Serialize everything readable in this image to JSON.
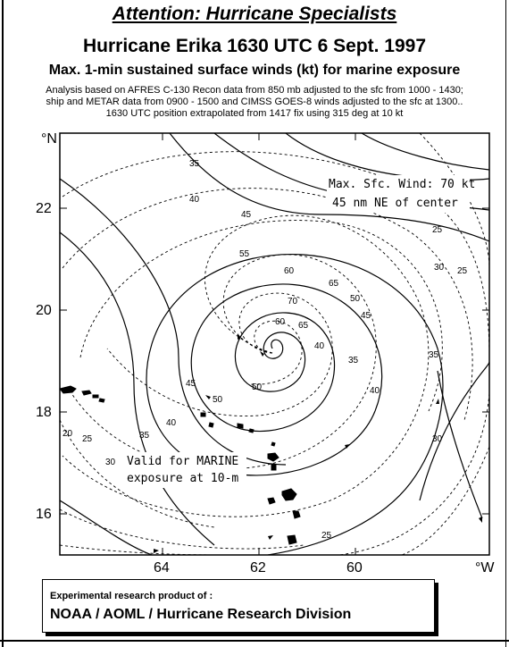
{
  "header": {
    "attention": "Attention: Hurricane Specialists",
    "title": "Hurricane Erika   1630 UTC 6 Sept. 1997",
    "subtitle": "Max. 1-min sustained surface winds (kt) for marine exposure",
    "note_lines": [
      "Analysis based on  AFRES C-130 Recon data from 850 mb adjusted to the sfc from  1000 - 1430;",
      "ship and METAR data  from 0900 -  1500 and CIMSS GOES-8 winds adjusted to the sfc at 1300..",
      "1630 UTC position extrapolated from  1417  fix using 315 deg at 10 kt"
    ]
  },
  "map": {
    "lat_unit": "°N",
    "lon_unit": "°W",
    "lat_ticks": [
      {
        "value": 22,
        "label": "22"
      },
      {
        "value": 20,
        "label": "20"
      },
      {
        "value": 18,
        "label": "18"
      },
      {
        "value": 16,
        "label": "16"
      }
    ],
    "lon_ticks": [
      {
        "value": 64,
        "label": "64"
      },
      {
        "value": 62,
        "label": "62"
      },
      {
        "value": 60,
        "label": "60"
      }
    ],
    "contour_labels": [
      "35",
      "40",
      "45",
      "55",
      "60",
      "65",
      "70",
      "60",
      "50",
      "45",
      "40",
      "40",
      "35",
      "30",
      "25",
      "30",
      "35",
      "25",
      "20",
      "25",
      "30",
      "35",
      "40",
      "45",
      "50",
      "65",
      "50",
      "25"
    ],
    "max_wind_line1": "Max. Sfc. Wind: 70 kt",
    "max_wind_line2": "45 nm NE of center",
    "valid_line1": "Valid for MARINE",
    "valid_line2": "exposure at 10-m"
  },
  "footer": {
    "line1": "Experimental research product of :",
    "line2": "NOAA / AOML / Hurricane Research Division"
  }
}
